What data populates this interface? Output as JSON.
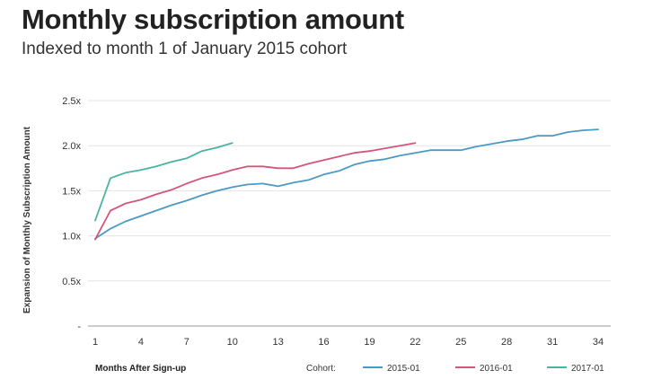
{
  "chart_data": {
    "type": "line",
    "title": "Monthly subscription amount",
    "subtitle": "Indexed to month 1 of January 2015 cohort",
    "xlabel": "Months After Sign-up",
    "ylabel": "Expansion of Monthly Subscription Amount",
    "xlim": [
      1,
      35
    ],
    "ylim": [
      0,
      2.5
    ],
    "x_ticks": [
      1,
      4,
      7,
      10,
      13,
      16,
      19,
      22,
      25,
      28,
      31,
      34
    ],
    "y_ticks": [
      {
        "value": 0,
        "label": "-"
      },
      {
        "value": 0.5,
        "label": "0.5x"
      },
      {
        "value": 1.0,
        "label": "1.0x"
      },
      {
        "value": 1.5,
        "label": "1.5x"
      },
      {
        "value": 2.0,
        "label": "2.0x"
      },
      {
        "value": 2.5,
        "label": "2.5x"
      }
    ],
    "grid": "horizontal",
    "legend_title": "Cohort:",
    "legend_position": "bottom",
    "series": [
      {
        "name": "2015-01",
        "color": "#4a9ac6",
        "x": [
          1,
          2,
          3,
          4,
          5,
          6,
          7,
          8,
          9,
          10,
          11,
          12,
          13,
          14,
          15,
          16,
          17,
          18,
          19,
          20,
          21,
          22,
          23,
          24,
          25,
          26,
          27,
          28,
          29,
          30,
          31,
          32,
          33,
          34
        ],
        "values": [
          0.97,
          1.08,
          1.16,
          1.22,
          1.28,
          1.34,
          1.39,
          1.45,
          1.5,
          1.54,
          1.57,
          1.58,
          1.55,
          1.59,
          1.62,
          1.68,
          1.72,
          1.79,
          1.83,
          1.85,
          1.89,
          1.92,
          1.95,
          1.95,
          1.95,
          1.99,
          2.02,
          2.05,
          2.07,
          2.11,
          2.11,
          2.15,
          2.17,
          2.18
        ]
      },
      {
        "name": "2016-01",
        "color": "#d1567a",
        "x": [
          1,
          2,
          3,
          4,
          5,
          6,
          7,
          8,
          9,
          10,
          11,
          12,
          13,
          14,
          15,
          16,
          17,
          18,
          19,
          20,
          21,
          22
        ],
        "values": [
          0.96,
          1.28,
          1.36,
          1.4,
          1.46,
          1.51,
          1.58,
          1.64,
          1.68,
          1.73,
          1.77,
          1.77,
          1.75,
          1.75,
          1.8,
          1.84,
          1.88,
          1.92,
          1.94,
          1.97,
          2.0,
          2.03
        ]
      },
      {
        "name": "2017-01",
        "color": "#4ab3a3",
        "x": [
          1,
          2,
          3,
          4,
          5,
          6,
          7,
          8,
          9,
          10
        ],
        "values": [
          1.17,
          1.64,
          1.7,
          1.73,
          1.77,
          1.82,
          1.86,
          1.94,
          1.98,
          2.03
        ]
      }
    ]
  }
}
